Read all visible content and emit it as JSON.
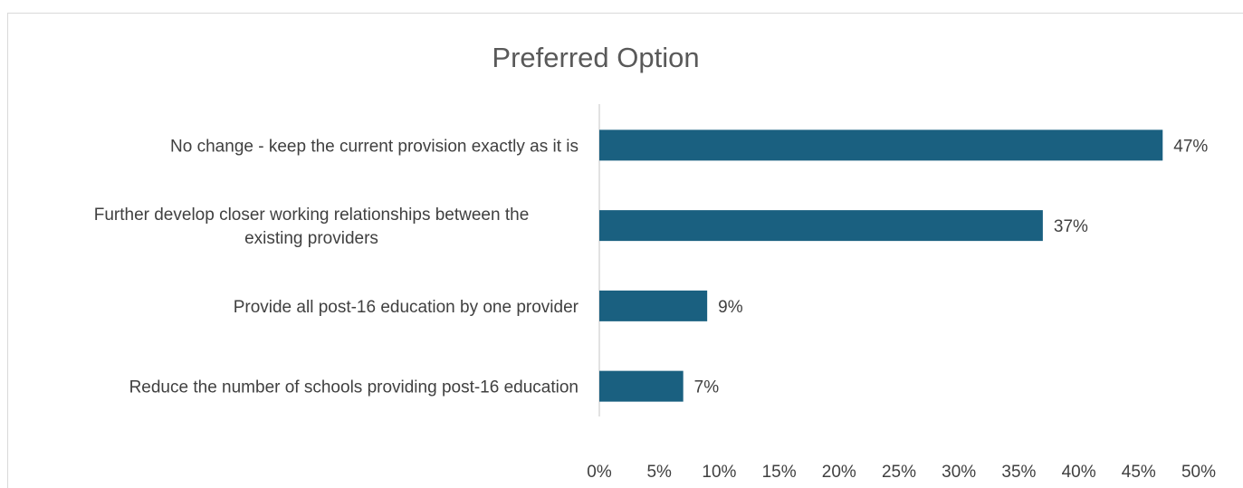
{
  "chart_data": {
    "type": "bar",
    "orientation": "horizontal",
    "title": "Preferred Option",
    "categories": [
      [
        "No change - keep the current provision exactly as it is"
      ],
      [
        "Further develop closer working relationships between the",
        "existing providers"
      ],
      [
        "Provide all post-16 education by one provider"
      ],
      [
        "Reduce the number of schools providing post-16 education"
      ]
    ],
    "values": [
      47,
      37,
      9,
      7
    ],
    "data_labels": [
      "47%",
      "37%",
      "9%",
      "7%"
    ],
    "xlim": [
      0,
      50
    ],
    "x_ticks": [
      0,
      5,
      10,
      15,
      20,
      25,
      30,
      35,
      40,
      45,
      50
    ],
    "x_tick_labels": [
      "0%",
      "5%",
      "10%",
      "15%",
      "20%",
      "25%",
      "30%",
      "35%",
      "40%",
      "45%",
      "50%"
    ],
    "grid": false,
    "bar_color": "#1a6080",
    "axis_color": "#d9d9d9"
  }
}
